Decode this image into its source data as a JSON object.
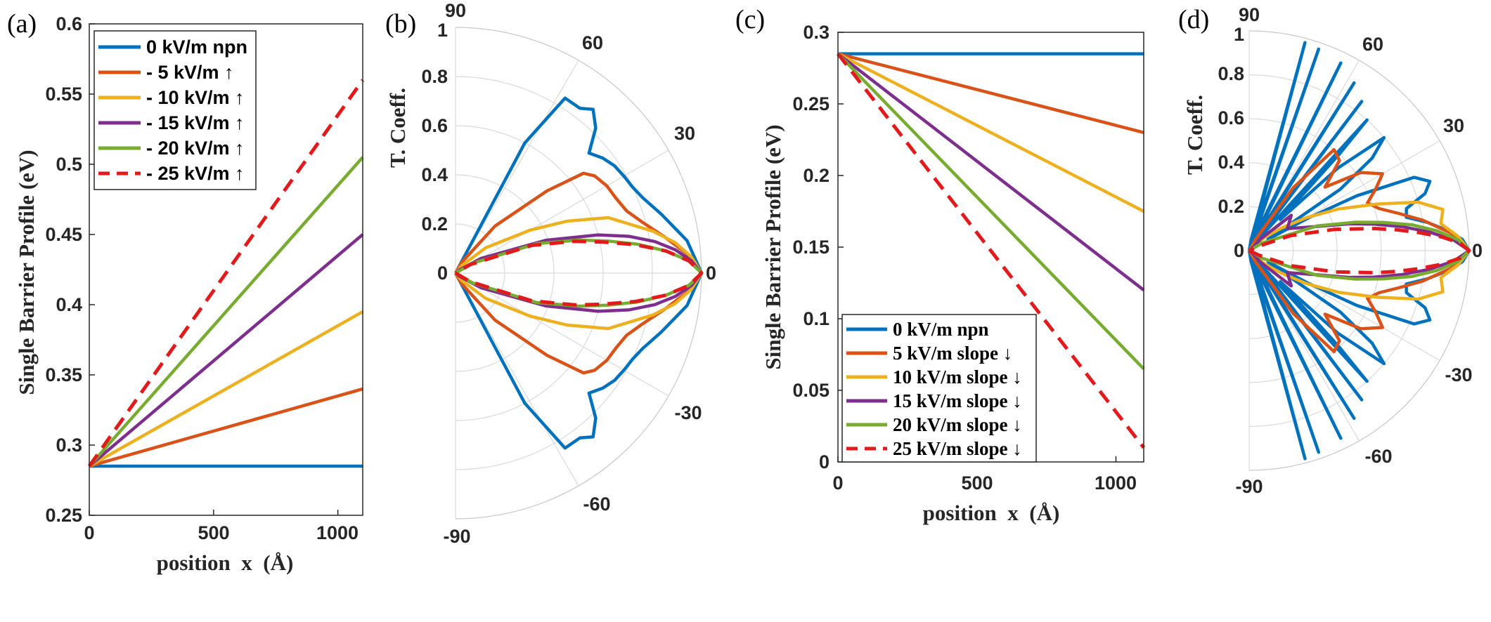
{
  "colors": {
    "blue": "#0072BD",
    "orange": "#D95319",
    "yellow": "#EDB120",
    "purple": "#7E2F8E",
    "green": "#77AC30",
    "red": "#E31A1C",
    "grid": "#DADADA",
    "axis": "#262626"
  },
  "chart_data": [
    {
      "panel": "(a)",
      "type": "line",
      "xlabel": "position  x  (Å)",
      "ylabel": "Single Barrier Profile (eV)",
      "xlim": [
        0,
        1100
      ],
      "ylim": [
        0.25,
        0.6
      ],
      "xticks": [
        0,
        500,
        1000
      ],
      "xtick_labels": [
        "0",
        "500",
        "1000"
      ],
      "yticks": [
        0.25,
        0.3,
        0.35,
        0.4,
        0.45,
        0.5,
        0.55,
        0.6
      ],
      "ytick_labels": [
        "0.25",
        "0.3",
        "0.35",
        "0.4",
        "0.45",
        "0.5",
        "0.55",
        "0.6"
      ],
      "legend_position": "top-left",
      "series": [
        {
          "name": "0 kV/m npn",
          "color": "blue",
          "x": [
            0,
            1100
          ],
          "y": [
            0.285,
            0.285
          ]
        },
        {
          "name": "- 5 kV/m ↑",
          "color": "orange",
          "x": [
            0,
            1100
          ],
          "y": [
            0.285,
            0.34
          ]
        },
        {
          "name": "- 10 kV/m ↑",
          "color": "yellow",
          "x": [
            0,
            1100
          ],
          "y": [
            0.285,
            0.395
          ]
        },
        {
          "name": "- 15 kV/m ↑",
          "color": "purple",
          "x": [
            0,
            1100
          ],
          "y": [
            0.285,
            0.45
          ]
        },
        {
          "name": "- 20 kV/m ↑",
          "color": "green",
          "x": [
            0,
            1100
          ],
          "y": [
            0.285,
            0.505
          ]
        },
        {
          "name": "- 25 kV/m ↑",
          "color": "red",
          "dashed": true,
          "x": [
            0,
            1100
          ],
          "y": [
            0.285,
            0.56
          ]
        }
      ]
    },
    {
      "panel": "(b)",
      "type": "polar",
      "rlabel": "T. Coeff.",
      "rlim": [
        0,
        1
      ],
      "rticks": [
        0,
        0.2,
        0.4,
        0.6,
        0.8,
        1
      ],
      "rtick_labels": [
        "0",
        "0.2",
        "0.4",
        "0.6",
        "0.8",
        "1"
      ],
      "theta_labels": [
        "90",
        "60",
        "30",
        "0",
        "-30",
        "-60",
        "-90"
      ],
      "series": [
        {
          "color": "blue",
          "theta": [
            0,
            8,
            16,
            22,
            26,
            30,
            34,
            38,
            42,
            46,
            50,
            53,
            58,
            62
          ],
          "r": [
            1,
            0.95,
            0.87,
            0.82,
            0.8,
            0.79,
            0.78,
            0.76,
            0.73,
            0.82,
            0.87,
            0.84,
            0.84,
            0.6
          ]
        },
        {
          "color": "orange",
          "theta": [
            0,
            5,
            10,
            15,
            20,
            25,
            30,
            35,
            38,
            42,
            50,
            60
          ],
          "r": [
            1,
            0.94,
            0.86,
            0.79,
            0.74,
            0.72,
            0.71,
            0.69,
            0.66,
            0.5,
            0.25,
            0.05
          ]
        },
        {
          "color": "yellow",
          "theta": [
            0,
            4,
            8,
            12,
            16,
            20,
            25,
            30,
            40,
            50
          ],
          "r": [
            1,
            0.96,
            0.9,
            0.82,
            0.73,
            0.66,
            0.5,
            0.35,
            0.16,
            0.04
          ]
        },
        {
          "color": "purple",
          "theta": [
            0,
            3,
            6,
            9,
            12,
            15,
            20,
            30,
            40
          ],
          "r": [
            1,
            0.96,
            0.9,
            0.82,
            0.72,
            0.6,
            0.39,
            0.12,
            0.02
          ]
        },
        {
          "color": "green",
          "theta": [
            0,
            3,
            6,
            9,
            12,
            15,
            20,
            30
          ],
          "r": [
            1,
            0.95,
            0.86,
            0.75,
            0.63,
            0.52,
            0.35,
            0.08
          ]
        },
        {
          "color": "red",
          "dashed": true,
          "theta": [
            0,
            3,
            6,
            9,
            12,
            15,
            20,
            30
          ],
          "r": [
            1,
            0.95,
            0.86,
            0.74,
            0.61,
            0.5,
            0.33,
            0.07
          ]
        }
      ]
    },
    {
      "panel": "(c)",
      "type": "line",
      "xlabel": "position  x  (Å)",
      "ylabel": "Single Barrier Profile (eV)",
      "xlim": [
        0,
        1100
      ],
      "ylim": [
        0,
        0.3
      ],
      "xticks": [
        0,
        500,
        1000
      ],
      "xtick_labels": [
        "0",
        "500",
        "1000"
      ],
      "yticks": [
        0,
        0.05,
        0.1,
        0.15,
        0.2,
        0.25,
        0.3
      ],
      "ytick_labels": [
        "0",
        "0.05",
        "0.1",
        "0.15",
        "0.2",
        "0.25",
        "0.3"
      ],
      "legend_position": "bottom-left",
      "series": [
        {
          "name": "0 kV/m npn",
          "color": "blue",
          "x": [
            0,
            1100
          ],
          "y": [
            0.285,
            0.285
          ]
        },
        {
          "name": "5 kV/m slope ↓",
          "color": "orange",
          "x": [
            0,
            1100
          ],
          "y": [
            0.285,
            0.23
          ]
        },
        {
          "name": "10 kV/m slope ↓",
          "color": "yellow",
          "x": [
            0,
            1100
          ],
          "y": [
            0.285,
            0.175
          ]
        },
        {
          "name": "15 kV/m slope ↓",
          "color": "purple",
          "x": [
            0,
            1100
          ],
          "y": [
            0.285,
            0.12
          ]
        },
        {
          "name": "20 kV/m slope ↓",
          "color": "green",
          "x": [
            0,
            1100
          ],
          "y": [
            0.285,
            0.065
          ]
        },
        {
          "name": "25 kV/m slope ↓",
          "color": "red",
          "dashed": true,
          "x": [
            0,
            1100
          ],
          "y": [
            0.285,
            0.01
          ]
        }
      ]
    },
    {
      "panel": "(d)",
      "type": "polar",
      "rlabel": "T. Coeff.",
      "rlim": [
        0,
        1
      ],
      "rticks": [
        0,
        0.2,
        0.4,
        0.6,
        0.8,
        1
      ],
      "rtick_labels": [
        "0",
        "0.2",
        "0.4",
        "0.6",
        "0.8",
        "1"
      ],
      "theta_labels": [
        "90",
        "60",
        "30",
        "0",
        "-30",
        "-60",
        "-90"
      ],
      "series": [
        {
          "color": "blue",
          "theta": [
            0,
            3,
            6,
            9,
            12,
            15,
            18,
            21,
            24,
            27,
            29,
            31,
            34,
            37,
            40,
            43,
            45,
            47,
            48,
            52,
            53,
            57,
            58,
            63,
            64,
            70,
            71,
            74,
            75,
            80
          ],
          "r": [
            1,
            0.97,
            0.9,
            0.82,
            0.73,
            0.74,
            0.84,
            0.88,
            0.82,
            0.55,
            0.3,
            0.1,
            0.5,
            0.7,
            0.8,
            0.55,
            0.2,
            0.6,
            0.8,
            0.05,
            0.85,
            0.05,
            0.9,
            0.05,
            0.95,
            0.05,
            0.97,
            0.05,
            0.98,
            0.05
          ]
        },
        {
          "color": "orange",
          "theta": [
            0,
            5,
            10,
            14,
            18,
            22,
            26,
            30,
            35,
            40,
            45,
            50,
            55,
            60
          ],
          "r": [
            1,
            0.92,
            0.8,
            0.7,
            0.62,
            0.58,
            0.64,
            0.7,
            0.62,
            0.45,
            0.58,
            0.6,
            0.35,
            0.06
          ]
        },
        {
          "color": "yellow",
          "theta": [
            0,
            4,
            8,
            12,
            16,
            20,
            25,
            30,
            35,
            40,
            50
          ],
          "r": [
            1,
            0.95,
            0.88,
            0.9,
            0.8,
            0.62,
            0.45,
            0.3,
            0.18,
            0.1,
            0.03
          ]
        },
        {
          "color": "purple",
          "theta": [
            0,
            3,
            6,
            9,
            12,
            15,
            20,
            30,
            40,
            45
          ],
          "r": [
            1,
            0.93,
            0.82,
            0.7,
            0.58,
            0.47,
            0.32,
            0.2,
            0.25,
            0.08
          ]
        },
        {
          "color": "green",
          "theta": [
            0,
            3,
            6,
            9,
            12,
            15,
            20,
            30
          ],
          "r": [
            1,
            0.95,
            0.86,
            0.75,
            0.62,
            0.5,
            0.33,
            0.07
          ]
        },
        {
          "color": "red",
          "dashed": true,
          "theta": [
            0,
            2,
            4,
            6,
            8,
            10,
            14,
            20,
            25
          ],
          "r": [
            1,
            0.96,
            0.88,
            0.78,
            0.68,
            0.58,
            0.4,
            0.2,
            0.05
          ]
        }
      ]
    }
  ]
}
